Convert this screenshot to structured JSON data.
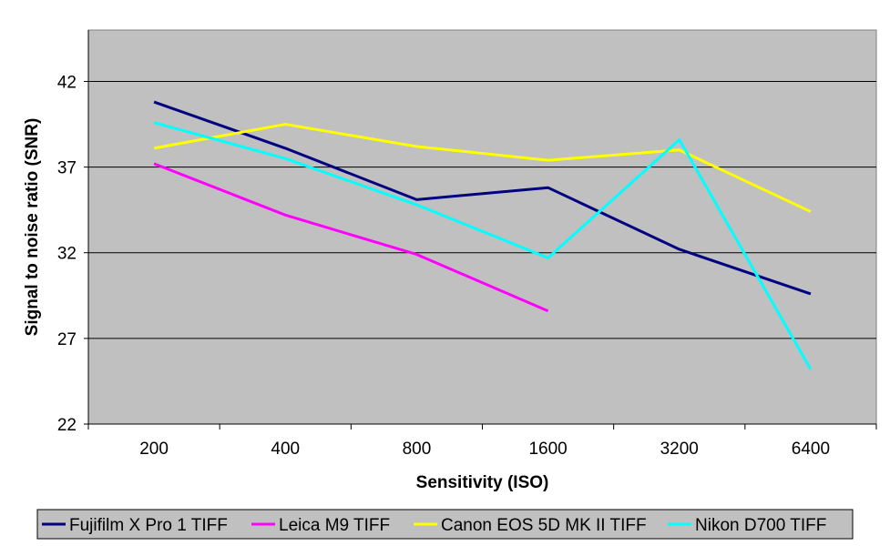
{
  "chart_data": {
    "type": "line",
    "title": "",
    "xlabel": "Sensitivity (ISO)",
    "ylabel": "Signal to noise ratio (SNR)",
    "categories": [
      "200",
      "400",
      "800",
      "1600",
      "3200",
      "6400"
    ],
    "ylim": [
      22,
      45
    ],
    "yticks": [
      22,
      27,
      32,
      37,
      42
    ],
    "grid": true,
    "legend_position": "bottom",
    "background": "#c0c0c0",
    "series": [
      {
        "name": "Fujifilm X Pro 1 TIFF",
        "color": "#000080",
        "values": [
          40.8,
          38.1,
          35.1,
          35.8,
          32.2,
          29.6
        ]
      },
      {
        "name": "Leica M9 TIFF",
        "color": "#ff00ff",
        "values": [
          37.2,
          34.2,
          31.9,
          28.6,
          null,
          null
        ]
      },
      {
        "name": "Canon EOS 5D MK II TIFF",
        "color": "#ffff00",
        "values": [
          38.1,
          39.5,
          38.2,
          37.4,
          38.0,
          34.4
        ]
      },
      {
        "name": "Nikon D700 TIFF",
        "color": "#00ffff",
        "values": [
          39.6,
          37.5,
          34.8,
          31.7,
          38.6,
          25.2
        ]
      }
    ]
  }
}
